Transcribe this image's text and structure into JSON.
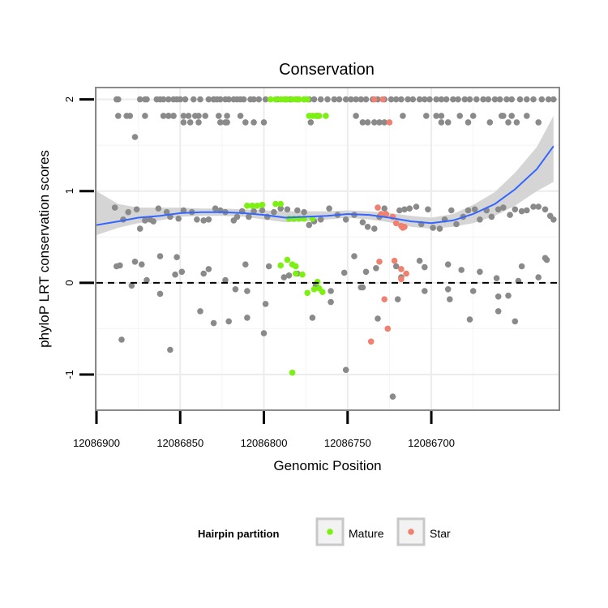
{
  "chart_data": {
    "type": "scatter",
    "title": "Conservation",
    "xlabel": "Genomic Position",
    "ylabel": "phyloP LRT conservation scores",
    "x_reversed": true,
    "xlim": [
      12086624,
      12086900
    ],
    "ylim": [
      -1.38,
      2.12
    ],
    "x_ticks": [
      12086900,
      12086850,
      12086800,
      12086750,
      12086700
    ],
    "y_ticks": [
      -1,
      0,
      1,
      2
    ],
    "grid": true,
    "reference_line": {
      "y": 0,
      "style": "dashed"
    },
    "legend": {
      "title": "Hairpin partition",
      "position": "bottom",
      "entries": [
        {
          "label": "Mature",
          "color": "#7cf011"
        },
        {
          "label": "Star",
          "color": "#f08070"
        }
      ]
    },
    "colors": {
      "Other": "#8a8a8a",
      "Mature": "#7cf011",
      "Star": "#f08070",
      "smooth": "#3366ff",
      "band": "#d0d0d0"
    },
    "series": [
      {
        "group": "Other",
        "x": [
          12086889,
          12086884,
          12086881,
          12086876,
          12086874,
          12086871,
          12086868,
          12086866,
          12086863,
          12086858,
          12086856,
          12086851,
          12086848,
          12086843,
          12086840,
          12086836,
          12086833,
          12086829,
          12086826,
          12086823,
          12086818,
          12086816,
          12086813,
          12086809,
          12086806,
          12086801,
          12086798,
          12086794,
          12086790,
          12086786,
          12086780,
          12086776,
          12086773,
          12086770,
          12086766,
          12086761,
          12086756,
          12086751,
          12086746,
          12086741,
          12086738,
          12086734,
          12086731,
          12086728,
          12086719,
          12086716,
          12086713,
          12086709,
          12086706,
          12086702,
          12086699,
          12086695,
          12086692,
          12086688,
          12086685,
          12086681,
          12086678,
          12086674,
          12086671,
          12086667,
          12086664,
          12086660,
          12086657,
          12086653,
          12086650,
          12086646,
          12086643,
          12086639,
          12086636,
          12086632,
          12086629,
          12086627,
          12086887,
          12086862,
          12086854,
          12086830,
          12086857,
          12086887,
          12086882,
          12086880,
          12086871,
          12086857,
          12086854,
          12086848,
          12086845,
          12086839,
          12086835,
          12086827,
          12086814,
          12086822,
          12086839,
          12086823,
          12086844,
          12086871,
          12086888,
          12086874,
          12086870,
          12086864,
          12086860,
          12086857,
          12086852,
          12086850,
          12086847,
          12086842,
          12086838,
          12086833,
          12086830,
          12086828,
          12086826,
          12086823,
          12086821,
          12086818,
          12086816,
          12086814,
          12086812,
          12086808,
          12086806,
          12086803,
          12086799,
          12086792,
          12086787,
          12086784,
          12086780,
          12086776,
          12086773,
          12086770,
          12086766,
          12086762,
          12086758,
          12086755,
          12086751,
          12086748,
          12086745,
          12086742,
          12086739,
          12086735,
          12086732,
          12086728,
          12086724,
          12086721,
          12086718,
          12086714,
          12086711,
          12086707,
          12086704,
          12086701,
          12086697,
          12086694,
          12086691,
          12086687,
          12086684,
          12086680,
          12086677,
          12086673,
          12086669,
          12086666,
          12086662,
          12086659,
          12086655,
          12086652,
          12086647,
          12086643,
          12086639,
          12086634,
          12086630,
          12086627,
          12086860,
          12086854,
          12086841,
          12086822,
          12086768,
          12086745,
          12086717,
          12086703,
          12086697,
          12086694,
          12086683,
          12086675,
          12086658,
          12086657,
          12086652,
          12086643,
          12086877,
          12086848,
          12086826,
          12086811,
          12086806,
          12086800,
          12086772,
          12086741,
          12086738,
          12086734,
          12086731,
          12086728,
          12086694,
          12086690,
          12086678,
          12086665,
          12086654,
          12086649,
          12086636
        ],
        "y": [
          0.82,
          0.69,
          0.77,
          0.8,
          0.59,
          0.68,
          0.69,
          0.67,
          0.81,
          0.77,
          0.72,
          0.7,
          0.79,
          0.77,
          0.69,
          0.68,
          0.69,
          0.81,
          0.79,
          0.77,
          0.68,
          0.72,
          0.78,
          0.72,
          0.78,
          0.79,
          0.72,
          0.77,
          0.81,
          0.8,
          0.79,
          0.77,
          0.63,
          0.67,
          0.69,
          0.81,
          0.74,
          0.69,
          0.74,
          0.66,
          0.61,
          0.59,
          0.72,
          0.81,
          0.79,
          0.8,
          0.81,
          0.83,
          0.64,
          0.8,
          0.6,
          0.59,
          0.69,
          0.79,
          0.64,
          0.72,
          0.79,
          0.8,
          0.69,
          0.79,
          0.72,
          0.8,
          0.82,
          0.74,
          0.8,
          0.78,
          0.79,
          0.83,
          0.83,
          0.8,
          0.73,
          0.69,
          2.0,
          2.0,
          2.0,
          2.0,
          1.82,
          1.82,
          1.82,
          1.82,
          1.82,
          1.82,
          1.82,
          1.82,
          1.82,
          1.82,
          1.82,
          1.82,
          1.82,
          1.75,
          1.75,
          1.75,
          1.75,
          2.0,
          2.0,
          2.0,
          2.0,
          2.0,
          2.0,
          2.0,
          2.0,
          2.0,
          2.0,
          2.0,
          2.0,
          2.0,
          2.0,
          2.0,
          2.0,
          2.0,
          2.0,
          2.0,
          2.0,
          2.0,
          2.0,
          2.0,
          2.0,
          2.0,
          2.0,
          2.0,
          2.0,
          2.0,
          2.0,
          2.0,
          2.0,
          2.0,
          2.0,
          2.0,
          2.0,
          2.0,
          2.0,
          2.0,
          2.0,
          2.0,
          2.0,
          2.0,
          2.0,
          2.0,
          2.0,
          2.0,
          2.0,
          2.0,
          2.0,
          2.0,
          2.0,
          2.0,
          2.0,
          2.0,
          2.0,
          2.0,
          2.0,
          2.0,
          2.0,
          2.0,
          2.0,
          2.0,
          2.0,
          2.0,
          2.0,
          2.0,
          2.0,
          2.0,
          2.0,
          2.0,
          2.0,
          2.0,
          1.82,
          1.82,
          1.82,
          1.82,
          1.82,
          1.82,
          1.82,
          1.82,
          1.82,
          1.82,
          1.82,
          1.82,
          1.82,
          1.82,
          1.82,
          1.82,
          1.59,
          1.75,
          1.75,
          1.75,
          1.75,
          1.75,
          1.75,
          1.75,
          1.75,
          1.75,
          1.75,
          1.75,
          1.75,
          1.75,
          1.75,
          1.75,
          1.75,
          1.75,
          1.75
        ]
      },
      {
        "group": "Other",
        "x": [
          12086888,
          12086879,
          12086873,
          12086862,
          12086849,
          12086836,
          12086823,
          12086810,
          12086797,
          12086788,
          12086769,
          12086752,
          12086741,
          12086733,
          12086720,
          12086704,
          12086690,
          12086675,
          12086661,
          12086654,
          12086646,
          12086632,
          12086885,
          12086870,
          12086862,
          12086852,
          12086838,
          12086830,
          12086817,
          12086811,
          12086799,
          12086785,
          12086771,
          12086760,
          12086746,
          12086732,
          12086718,
          12086704,
          12086689,
          12086677,
          12086660,
          12086648,
          12086636,
          12086631,
          12086650,
          12086660,
          12086671,
          12086682,
          12086690,
          12086707,
          12086721,
          12086739,
          12086742,
          12086760,
          12086780,
          12086810,
          12086833,
          12086853,
          12086877,
          12086886,
          12086856,
          12086821,
          12086800,
          12086751,
          12086723
        ],
        "y": [
          0.18,
          -0.03,
          0.2,
          0.29,
          0.12,
          0.1,
          0.03,
          -0.09,
          0.18,
          0.06,
          -0.03,
          0.11,
          -0.05,
          0.16,
          -0.18,
          0.17,
          0.2,
          -0.09,
          0.05,
          -0.14,
          0.18,
          0.27,
          -0.62,
          0.03,
          -0.12,
          0.28,
          -0.31,
          -0.44,
          -0.07,
          0.2,
          -0.23,
          0.08,
          -0.38,
          -0.21,
          0.29,
          -0.39,
          0.06,
          -0.09,
          -0.18,
          -0.4,
          -0.15,
          0.02,
          0.06,
          0.25,
          -0.42,
          -0.31,
          0.12,
          0.14,
          -0.07,
          0.24,
          0.18,
          0.12,
          -0.05,
          -0.09,
          0.1,
          -0.38,
          0.15,
          0.09,
          0.23,
          0.19,
          -0.73,
          -0.42,
          -0.55,
          -0.95,
          -1.24
        ]
      },
      {
        "group": "Mature",
        "x": [
          12086796,
          12086793,
          12086790,
          12086788,
          12086786,
          12086783,
          12086781,
          12086779,
          12086776,
          12086774,
          12086773,
          12086771,
          12086769,
          12086767,
          12086763,
          12086810,
          12086807,
          12086804,
          12086801,
          12086793,
          12086790,
          12086785,
          12086782,
          12086779,
          12086776,
          12086771,
          12086790,
          12086786,
          12086783,
          12086781,
          12086781,
          12086777,
          12086774,
          12086770,
          12086765,
          12086767,
          12086768,
          12086783
        ],
        "y": [
          2.0,
          2.0,
          2.0,
          2.0,
          2.0,
          2.0,
          2.0,
          2.0,
          2.0,
          2.0,
          1.82,
          1.82,
          1.82,
          1.82,
          1.82,
          0.84,
          0.84,
          0.84,
          0.85,
          0.86,
          0.86,
          0.7,
          0.7,
          0.7,
          0.7,
          0.7,
          0.19,
          0.25,
          0.2,
          0.18,
          0.1,
          0.09,
          -0.11,
          -0.07,
          -0.1,
          -0.06,
          0.01,
          -0.98
        ]
      },
      {
        "group": "Star",
        "x": [
          12086734,
          12086729,
          12086725,
          12086732,
          12086730,
          12086727,
          12086723,
          12086721,
          12086717,
          12086718,
          12086716,
          12086715,
          12086718,
          12086722,
          12086718,
          12086731,
          12086728,
          12086726,
          12086736
        ],
        "y": [
          2.0,
          2.0,
          1.75,
          0.82,
          0.75,
          0.75,
          0.72,
          0.65,
          0.6,
          0.62,
          0.61,
          0.1,
          0.15,
          0.24,
          0.04,
          0.23,
          -0.18,
          -0.5,
          -0.64
        ]
      }
    ],
    "smooth": {
      "method": "loess",
      "x": [
        12086900,
        12086887,
        12086875,
        12086862,
        12086850,
        12086837,
        12086825,
        12086812,
        12086800,
        12086787,
        12086775,
        12086762,
        12086750,
        12086737,
        12086725,
        12086712,
        12086700,
        12086687,
        12086675,
        12086662,
        12086650,
        12086637,
        12086627
      ],
      "y": [
        0.63,
        0.67,
        0.71,
        0.73,
        0.76,
        0.77,
        0.77,
        0.76,
        0.74,
        0.71,
        0.72,
        0.73,
        0.75,
        0.74,
        0.71,
        0.67,
        0.65,
        0.68,
        0.75,
        0.86,
        1.02,
        1.24,
        1.49
      ],
      "lower": [
        0.52,
        0.6,
        0.65,
        0.68,
        0.72,
        0.73,
        0.73,
        0.72,
        0.69,
        0.66,
        0.67,
        0.69,
        0.71,
        0.69,
        0.66,
        0.61,
        0.59,
        0.61,
        0.65,
        0.73,
        0.84,
        1.0,
        1.1
      ],
      "upper": [
        1.0,
        0.86,
        0.82,
        0.82,
        0.82,
        0.81,
        0.81,
        0.8,
        0.79,
        0.78,
        0.78,
        0.78,
        0.79,
        0.78,
        0.76,
        0.73,
        0.71,
        0.75,
        0.85,
        0.99,
        1.2,
        1.48,
        1.82
      ]
    }
  }
}
